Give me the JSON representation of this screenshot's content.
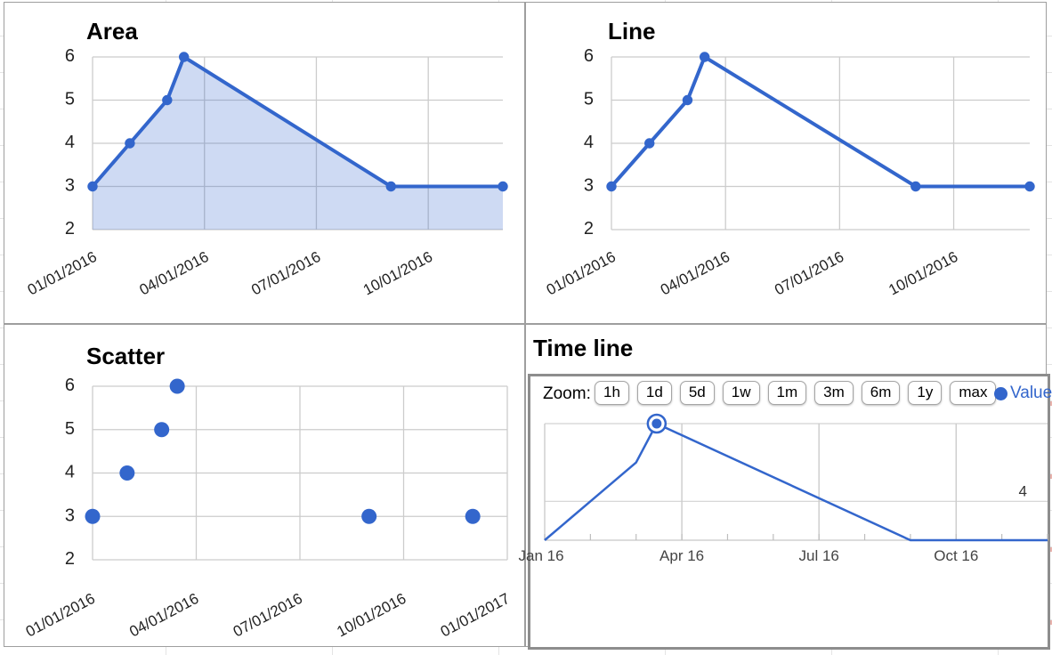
{
  "colors": {
    "accent": "#3366cc",
    "area_fill": "rgba(51,102,204,0.24)",
    "gridline": "#cccccc",
    "tick_text": "#222222",
    "timeline_month_text": "#444444",
    "panel_border": "#9e9e9e",
    "widget_border": "#8d8d8d"
  },
  "series": {
    "name": "Value",
    "dates": [
      "01/01/2016",
      "02/01/2016",
      "03/01/2016",
      "03/15/2016",
      "09/01/2016",
      "12/01/2016"
    ],
    "month_offsets": [
      0,
      1,
      2,
      2.45,
      8,
      11
    ],
    "values": [
      3,
      4,
      5,
      6,
      3,
      3
    ]
  },
  "chart_data": [
    {
      "type": "area",
      "title": "Area",
      "x": [
        0,
        1,
        2,
        2.45,
        8,
        11
      ],
      "values": [
        3,
        4,
        5,
        6,
        3,
        3
      ],
      "x_ticks": [
        "01/01/2016",
        "04/01/2016",
        "07/01/2016",
        "10/01/2016"
      ],
      "x_tick_months": [
        0,
        3,
        6,
        9
      ],
      "y_ticks": [
        2,
        3,
        4,
        5,
        6
      ],
      "ylim": [
        2,
        6
      ],
      "xlim_months": [
        0,
        11
      ],
      "grid": true,
      "legend_position": "none"
    },
    {
      "type": "line",
      "title": "Line",
      "x": [
        0,
        1,
        2,
        2.45,
        8,
        11
      ],
      "values": [
        3,
        4,
        5,
        6,
        3,
        3
      ],
      "x_ticks": [
        "01/01/2016",
        "04/01/2016",
        "07/01/2016",
        "10/01/2016"
      ],
      "x_tick_months": [
        0,
        3,
        6,
        9
      ],
      "y_ticks": [
        2,
        3,
        4,
        5,
        6
      ],
      "ylim": [
        2,
        6
      ],
      "xlim_months": [
        0,
        11
      ],
      "grid": true,
      "legend_position": "none"
    },
    {
      "type": "scatter",
      "title": "Scatter",
      "x": [
        0,
        1,
        2,
        2.45,
        8,
        11
      ],
      "values": [
        3,
        4,
        5,
        6,
        3,
        3
      ],
      "x_ticks": [
        "01/01/2016",
        "04/01/2016",
        "07/01/2016",
        "10/01/2016",
        "01/01/2017"
      ],
      "x_tick_months": [
        0,
        3,
        6,
        9,
        12
      ],
      "y_ticks": [
        2,
        3,
        4,
        5,
        6
      ],
      "ylim": [
        2,
        6
      ],
      "xlim_months": [
        0,
        12
      ],
      "grid": true,
      "legend_position": "none"
    },
    {
      "type": "line",
      "subtype": "annotated-timeline",
      "title": "Time line",
      "x": [
        0,
        1,
        2,
        2.45,
        8,
        11
      ],
      "values": [
        3,
        4,
        5,
        6,
        3,
        3
      ],
      "x_ticks": [
        "Jan 16",
        "Apr 16",
        "Jul 16",
        "Oct 16"
      ],
      "x_tick_months": [
        0,
        3,
        6,
        9
      ],
      "y_gridline_values": [
        6,
        4
      ],
      "y_axis_labels_right": [
        "4"
      ],
      "ylim": [
        3,
        6
      ],
      "xlim_months": [
        0,
        11
      ],
      "selected_point_index": 3,
      "toolbar": {
        "zoom_label": "Zoom:",
        "buttons": [
          "1h",
          "1d",
          "5d",
          "1w",
          "1m",
          "3m",
          "6m",
          "1y",
          "max"
        ]
      },
      "legend": {
        "label": "Value"
      }
    }
  ]
}
